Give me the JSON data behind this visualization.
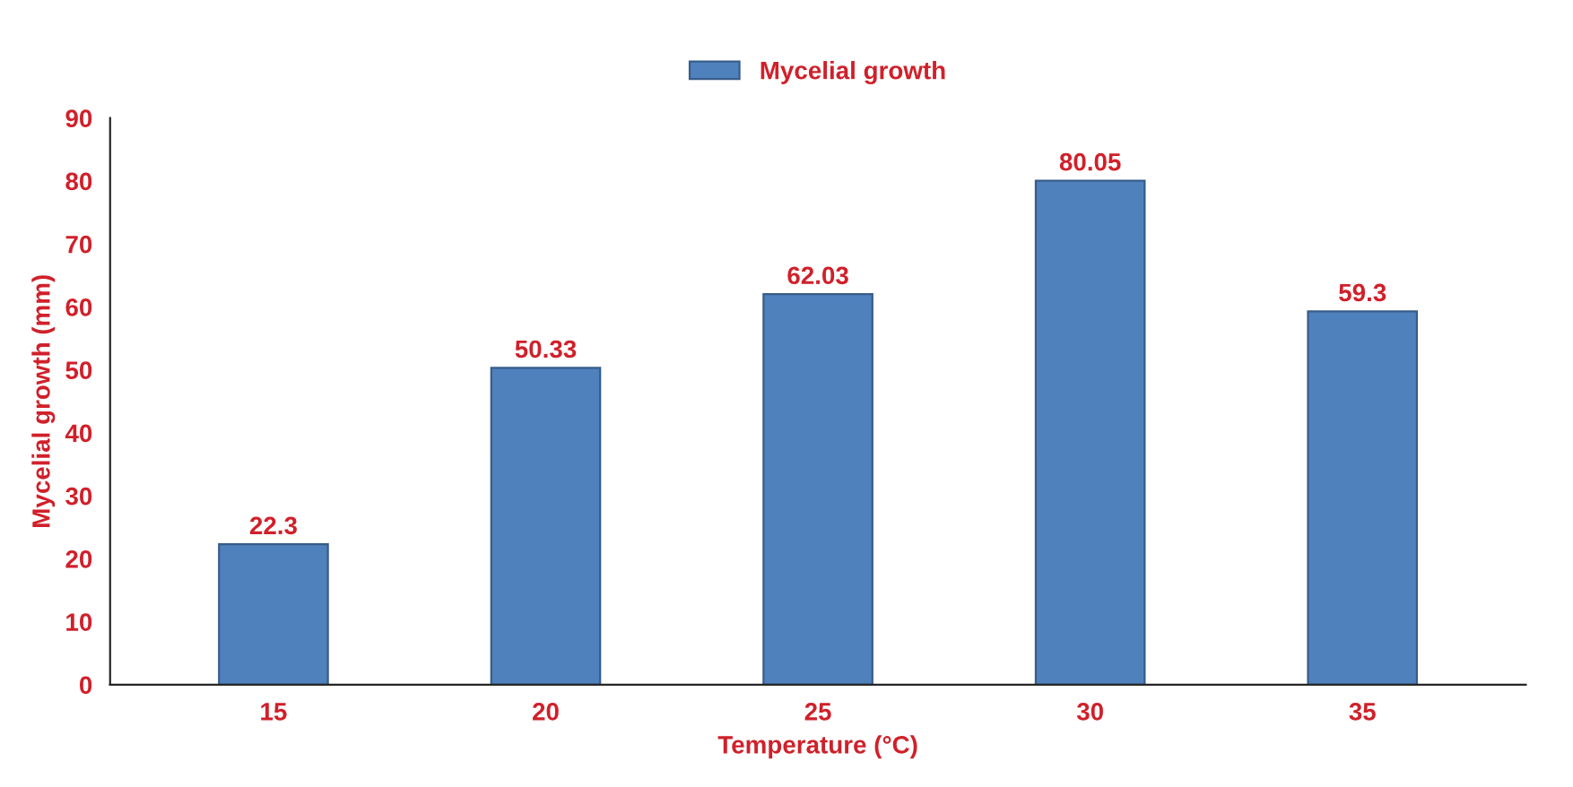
{
  "chart_data": {
    "type": "bar",
    "xlabel": "Temperature (°C)",
    "ylabel": "Mycelial growth (mm)",
    "categories": [
      "15",
      "20",
      "25",
      "30",
      "35"
    ],
    "series": [
      {
        "name": "Mycelial growth",
        "color": "#4f81bd",
        "values": [
          22.3,
          50.33,
          62.03,
          80.05,
          59.3
        ]
      }
    ],
    "ylim": [
      0,
      90
    ],
    "yticks": [
      0,
      10,
      20,
      30,
      40,
      50,
      60,
      70,
      80,
      90
    ],
    "data_labels": true,
    "legend": "top",
    "grid": false
  }
}
